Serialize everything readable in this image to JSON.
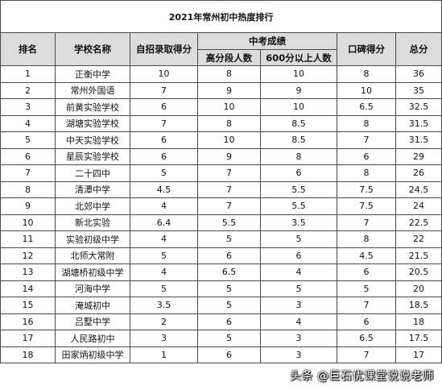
{
  "title": "2021年常州初中热度排行",
  "headers": {
    "rank": "排名",
    "school": "学校名称",
    "self_admission": "自招录取得分",
    "zhongkao": "中考成绩",
    "high_score_count": "高分段人数",
    "over600_count": "600分以上人数",
    "reputation": "口碑得分",
    "total": "总分"
  },
  "rows": [
    {
      "rank": "1",
      "school": "正衡中学",
      "self": "10",
      "high": "8",
      "over600": "10",
      "rep": "8",
      "total": "36"
    },
    {
      "rank": "2",
      "school": "常州外国语",
      "self": "7",
      "high": "9",
      "over600": "9",
      "rep": "10",
      "total": "35"
    },
    {
      "rank": "3",
      "school": "前黄实验学校",
      "self": "6",
      "high": "10",
      "over600": "10",
      "rep": "6.5",
      "total": "32.5"
    },
    {
      "rank": "4",
      "school": "湖塘实验学校",
      "self": "7",
      "high": "8",
      "over600": "8.5",
      "rep": "8",
      "total": "31.5"
    },
    {
      "rank": "5",
      "school": "中天实验学校",
      "self": "6",
      "high": "10",
      "over600": "8.5",
      "rep": "7",
      "total": "31.5"
    },
    {
      "rank": "6",
      "school": "星辰实验学校",
      "self": "6",
      "high": "9",
      "over600": "8",
      "rep": "6",
      "total": "29"
    },
    {
      "rank": "7",
      "school": "二十四中",
      "self": "5",
      "high": "7",
      "over600": "6",
      "rep": "8",
      "total": "26"
    },
    {
      "rank": "8",
      "school": "清潭中学",
      "self": "4.5",
      "high": "7",
      "over600": "5.5",
      "rep": "7.5",
      "total": "24.5"
    },
    {
      "rank": "9",
      "school": "北郊中学",
      "self": "4",
      "high": "7",
      "over600": "5.5",
      "rep": "7.5",
      "total": "24"
    },
    {
      "rank": "10",
      "school": "新北实验",
      "self": "6.4",
      "high": "5.5",
      "over600": "3.5",
      "rep": "7",
      "total": "22.5"
    },
    {
      "rank": "11",
      "school": "实验初级中学",
      "self": "4",
      "high": "5",
      "over600": "5",
      "rep": "8",
      "total": "22"
    },
    {
      "rank": "12",
      "school": "北师大常附",
      "self": "5",
      "high": "6",
      "over600": "6",
      "rep": "4.5",
      "total": "21.5"
    },
    {
      "rank": "13",
      "school": "湖塘桥初级中学",
      "self": "4",
      "high": "6.5",
      "over600": "4",
      "rep": "6",
      "total": "20.5"
    },
    {
      "rank": "14",
      "school": "河海中学",
      "self": "5",
      "high": "5",
      "over600": "5",
      "rep": "5",
      "total": "20"
    },
    {
      "rank": "15",
      "school": "淹城初中",
      "self": "3.5",
      "high": "5",
      "over600": "3",
      "rep": "7",
      "total": "18.5"
    },
    {
      "rank": "16",
      "school": "吕墅中学",
      "self": "2",
      "high": "6",
      "over600": "4",
      "rep": "6",
      "total": "18"
    },
    {
      "rank": "17",
      "school": "人民路初中",
      "self": "3",
      "high": "5",
      "over600": "3",
      "rep": "6.5",
      "total": "17.5"
    },
    {
      "rank": "18",
      "school": "田家炳初级中学",
      "self": "1",
      "high": "6",
      "over600": "3",
      "rep": "7",
      "total": "17"
    }
  ],
  "watermark": "头条 @巨石优课堂说说老师"
}
